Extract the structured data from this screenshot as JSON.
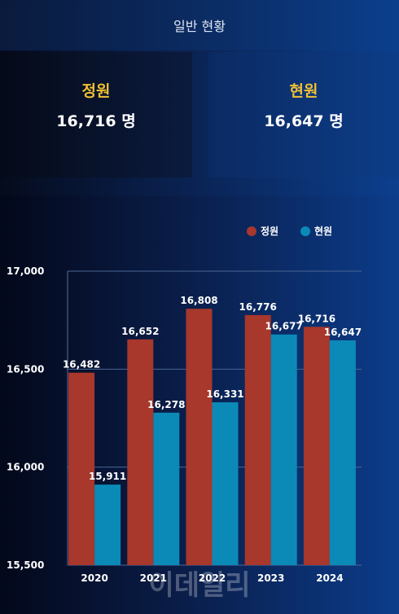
{
  "header": {
    "title": "일반 현황"
  },
  "summary": {
    "quota": {
      "label": "정원",
      "value": "16,716 명"
    },
    "current": {
      "label": "현원",
      "value": "16,647 명"
    }
  },
  "chart_data": {
    "type": "bar",
    "categories": [
      "2020",
      "2021",
      "2022",
      "2023",
      "2024"
    ],
    "series": [
      {
        "name": "정원",
        "color": "#a8372c",
        "values": [
          16482,
          16652,
          16808,
          16776,
          16716
        ],
        "labels": [
          "16,482",
          "16,652",
          "16,808",
          "16,776",
          "16,716"
        ]
      },
      {
        "name": "현원",
        "color": "#0b8ab8",
        "values": [
          15911,
          16278,
          16331,
          16677,
          16647
        ],
        "labels": [
          "15,911",
          "16,278",
          "16,331",
          "16,677",
          "16,647"
        ]
      }
    ],
    "ylim": [
      15500,
      17000
    ],
    "yticks": [
      {
        "value": 15500,
        "label": "15,500"
      },
      {
        "value": 16000,
        "label": "16,000"
      },
      {
        "value": 16500,
        "label": "16,500"
      },
      {
        "value": 17000,
        "label": "17,000"
      }
    ],
    "legend_position": "top-right",
    "grid": true
  },
  "watermark": {
    "text": "이데일리"
  }
}
